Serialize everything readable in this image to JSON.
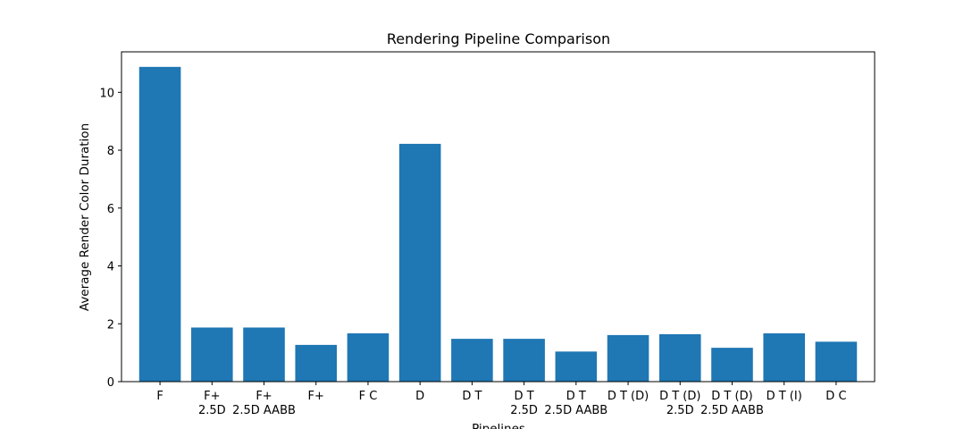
{
  "chart_data": {
    "type": "bar",
    "title": "Rendering Pipeline Comparison",
    "xlabel": "Pipelines",
    "ylabel": "Average Render Color Duration",
    "categories": [
      "F",
      "F+\n2.5D",
      "F+\n2.5D AABB",
      "F+",
      "F C",
      "D",
      "D T",
      "D T\n2.5D",
      "D T\n2.5D AABB",
      "D T (D)",
      "D T (D)\n2.5D",
      "D T (D)\n2.5D AABB",
      "D T (I)",
      "D C"
    ],
    "values": [
      10.88,
      1.87,
      1.87,
      1.27,
      1.67,
      8.22,
      1.48,
      1.48,
      1.04,
      1.61,
      1.64,
      1.17,
      1.67,
      1.38
    ],
    "ylim": [
      0,
      11.4
    ],
    "yticks": [
      0,
      2,
      4,
      6,
      8,
      10
    ],
    "bar_color": "#1f77b4",
    "grid": false,
    "legend": "none"
  }
}
